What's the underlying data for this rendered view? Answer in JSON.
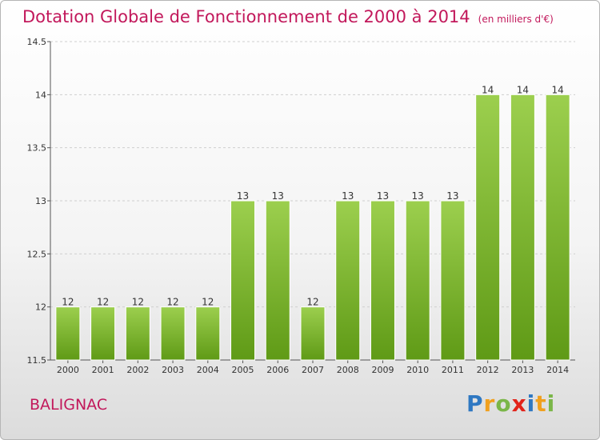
{
  "title": "Dotation Globale de Fonctionnement de 2000 à 2014",
  "unit": "(en milliers d'€)",
  "commune": "BALIGNAC",
  "logo": {
    "p": "P",
    "r": "r",
    "o": "o",
    "x": "x",
    "i1": "i",
    "t": "t",
    "i2": "i"
  },
  "colors": {
    "bar_top": "#9ccf4e",
    "bar_bottom": "#5f9a16",
    "title": "#c2185b",
    "grid": "#cfcfcf"
  },
  "chart_data": {
    "type": "bar",
    "categories": [
      "2000",
      "2001",
      "2002",
      "2003",
      "2004",
      "2005",
      "2006",
      "2007",
      "2008",
      "2009",
      "2010",
      "2011",
      "2012",
      "2013",
      "2014"
    ],
    "values": [
      12,
      12,
      12,
      12,
      12,
      13,
      13,
      12,
      13,
      13,
      13,
      13,
      14,
      14,
      14
    ],
    "data_labels": [
      "12",
      "12",
      "12",
      "12",
      "12",
      "13",
      "13",
      "12",
      "13",
      "13",
      "13",
      "13",
      "14",
      "14",
      "14"
    ],
    "ylim": [
      11.5,
      14.5
    ],
    "yticks": [
      11.5,
      12,
      12.5,
      13,
      13.5,
      14,
      14.5
    ],
    "ytick_labels": [
      "11.5",
      "12",
      "12.5",
      "13",
      "13.5",
      "14",
      "14.5"
    ],
    "grid": true
  }
}
